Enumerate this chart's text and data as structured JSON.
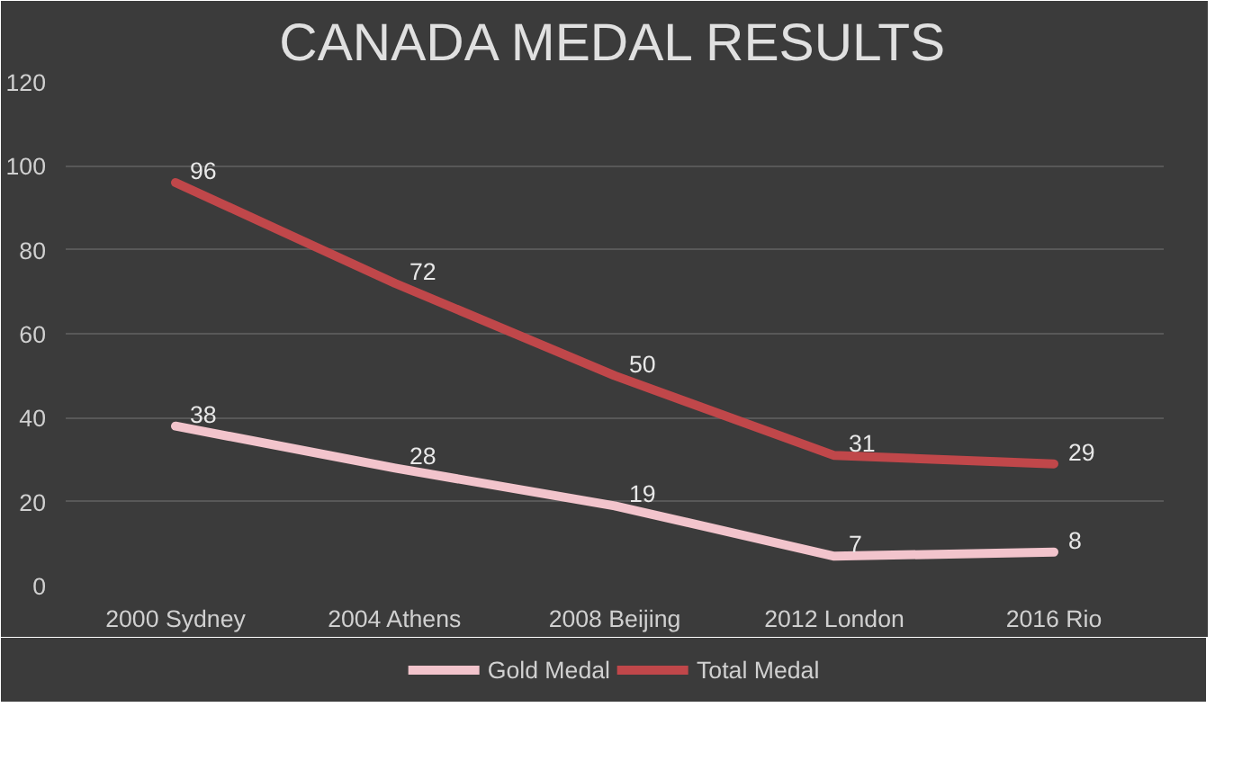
{
  "chart_data": {
    "type": "line",
    "title": "CANADA MEDAL RESULTS",
    "categories": [
      "2000 Sydney",
      "2004 Athens",
      "2008 Beijing",
      "2012 London",
      "2016 Rio"
    ],
    "series": [
      {
        "name": "Gold Medal",
        "color": "#f2c4cc",
        "values": [
          38,
          28,
          19,
          7,
          8
        ]
      },
      {
        "name": "Total Medal",
        "color": "#c0474a",
        "values": [
          96,
          72,
          50,
          31,
          29
        ]
      }
    ],
    "ylim": [
      0,
      120
    ],
    "yticks": [
      0,
      20,
      40,
      60,
      80,
      100,
      120
    ],
    "grid": "y",
    "legend": "bottom",
    "data_labels": true,
    "marker": "none",
    "line_style": "solid"
  }
}
